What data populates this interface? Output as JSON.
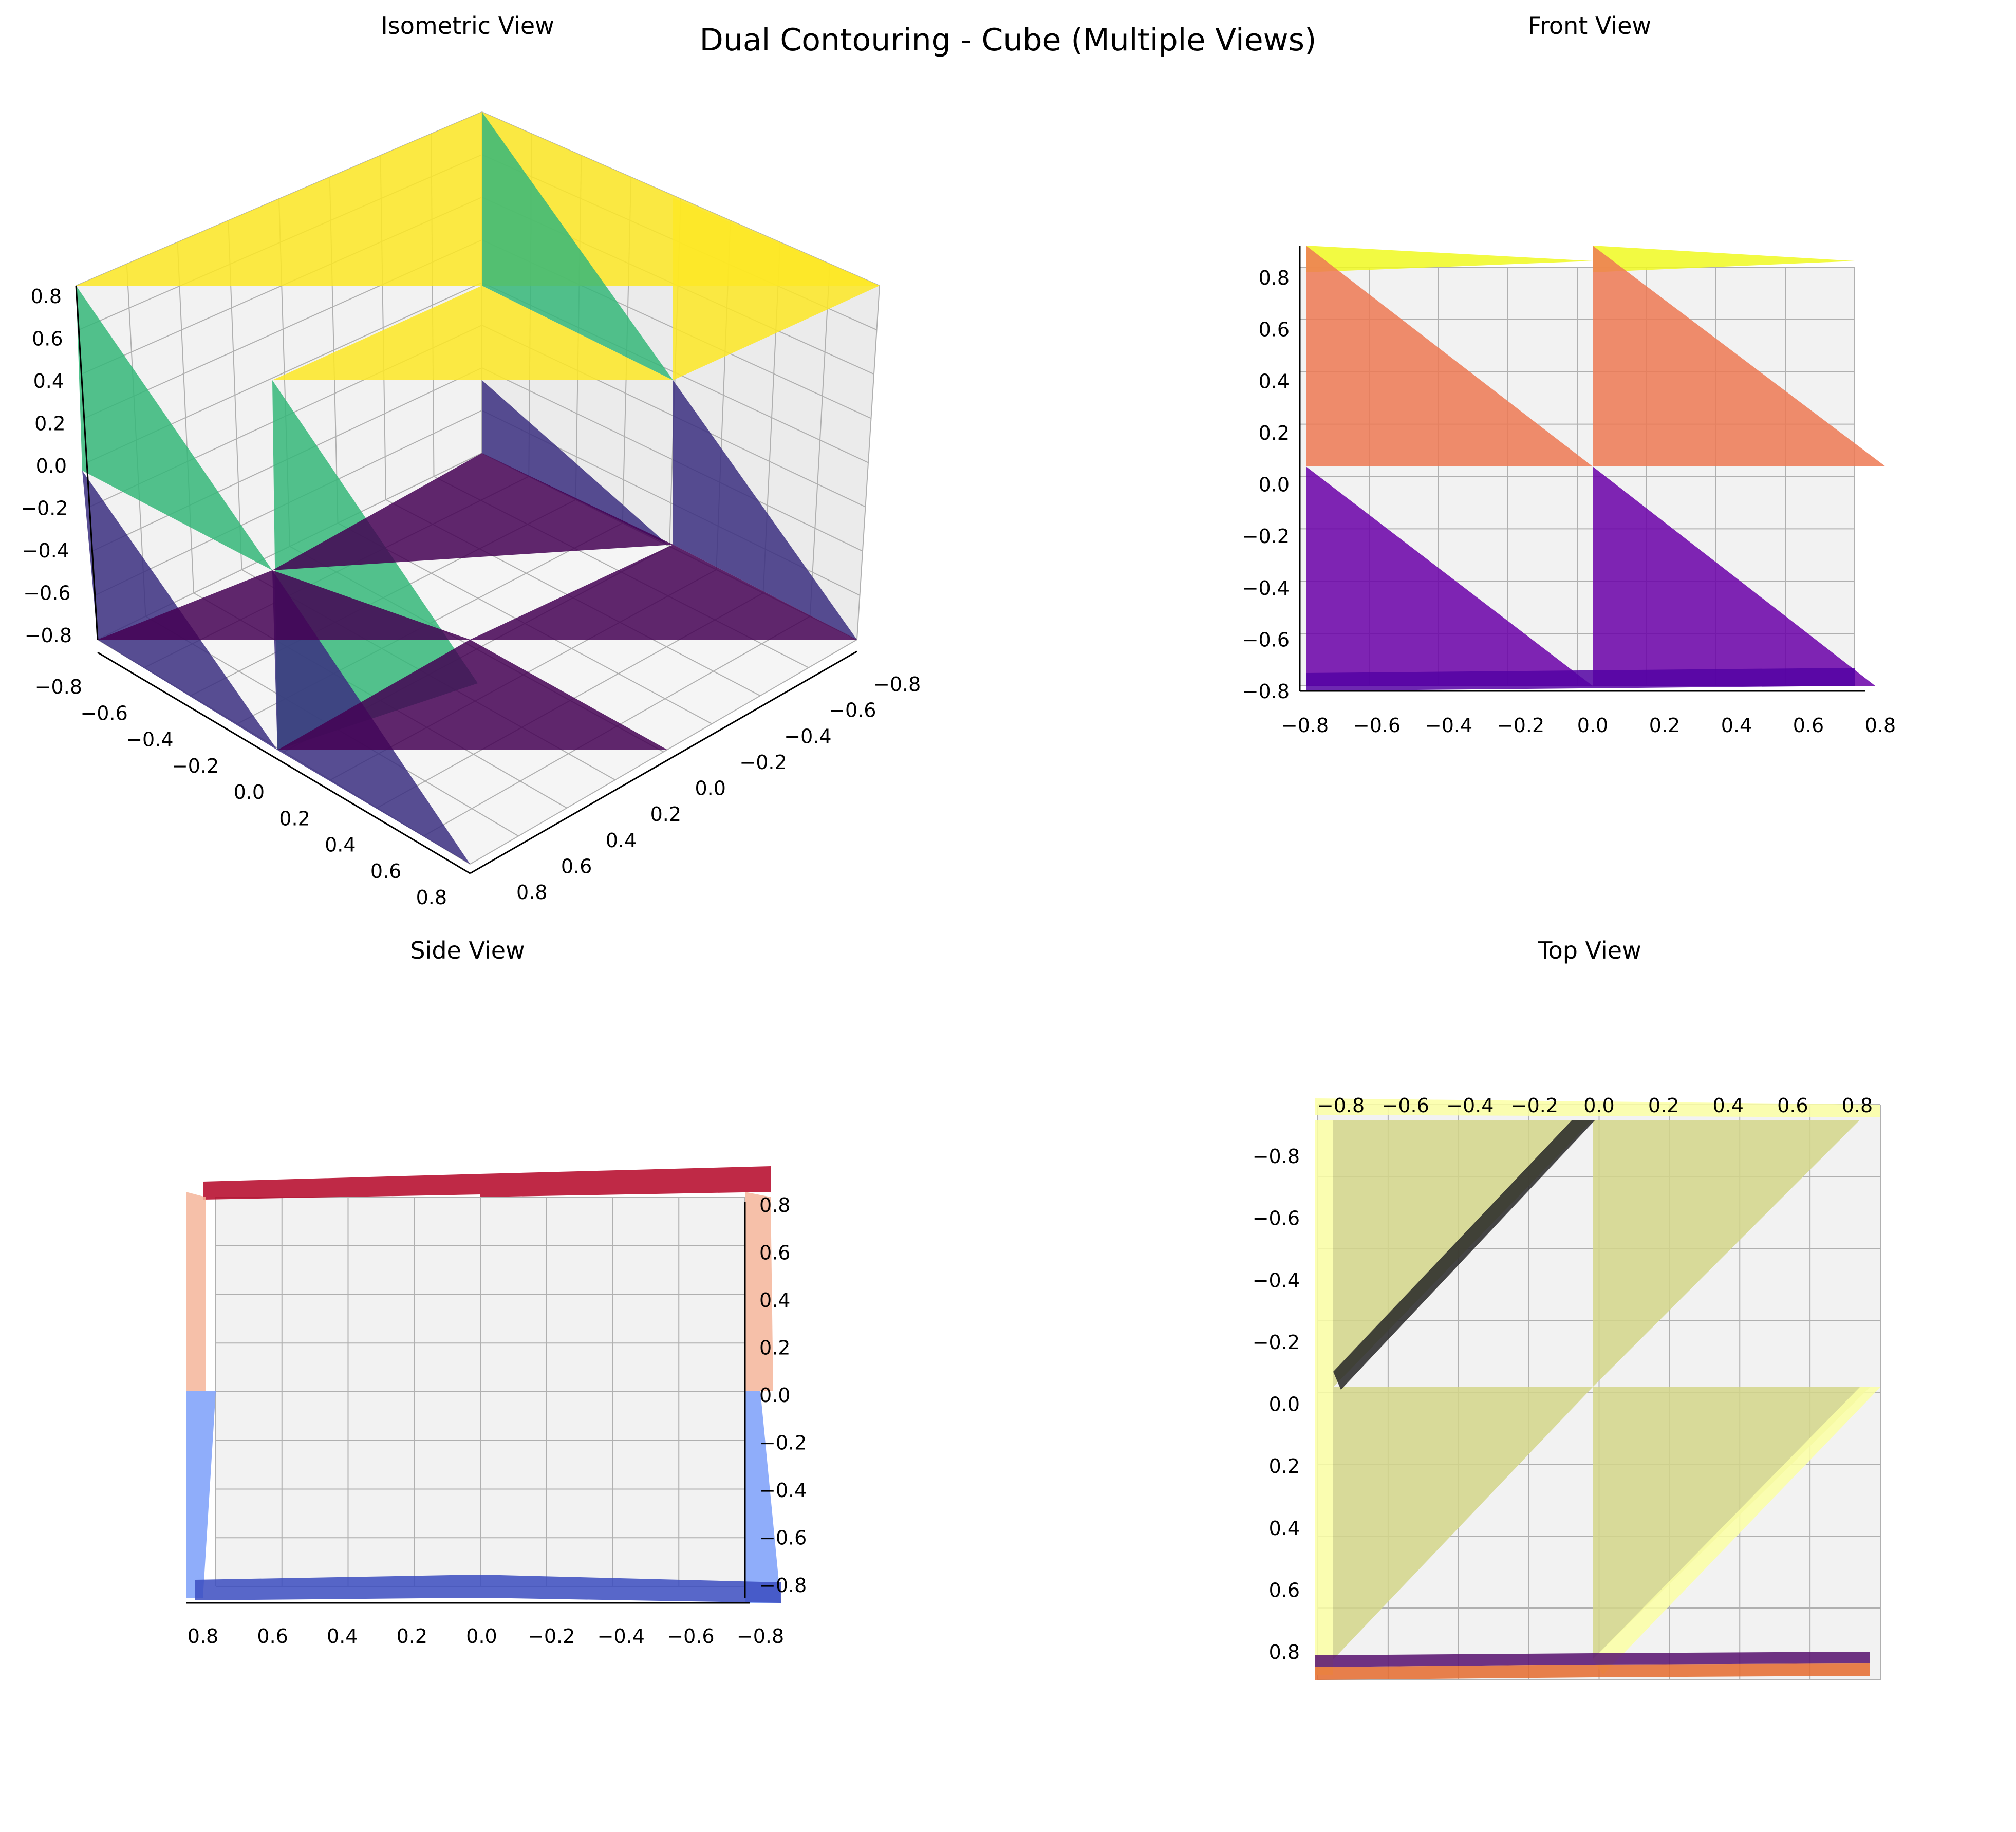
{
  "figure": {
    "title": "Dual Contouring - Cube (Multiple Views)"
  },
  "chart_data": [
    {
      "type": "surface3d",
      "title": "Isometric View",
      "colormap": "viridis",
      "view": "isometric",
      "xlim": [
        -0.85,
        0.85
      ],
      "ylim": [
        -0.85,
        0.85
      ],
      "zlim": [
        -0.85,
        0.85
      ],
      "x_ticks": [
        "−0.8",
        "−0.6",
        "−0.4",
        "−0.2",
        "0.0",
        "0.2",
        "0.4",
        "0.6",
        "0.8"
      ],
      "y_ticks": [
        "−0.8",
        "−0.6",
        "−0.4",
        "−0.2",
        "0.0",
        "0.2",
        "0.4",
        "0.6",
        "0.8"
      ],
      "z_ticks": [
        "−0.8",
        "−0.6",
        "−0.4",
        "−0.2",
        "0.0",
        "0.2",
        "0.4",
        "0.6",
        "0.8"
      ],
      "grid": true,
      "face_colors": {
        "top": "#fde725",
        "side": "#35b779",
        "lower_side": "#3b2f80",
        "bottom": "#440154"
      }
    },
    {
      "type": "surface3d",
      "title": "Front View",
      "colormap": "plasma",
      "view": "front",
      "x_ticks": [
        "−0.8",
        "−0.6",
        "−0.4",
        "−0.2",
        "0.0",
        "0.2",
        "0.4",
        "0.6",
        "0.8"
      ],
      "z_ticks": [
        "−0.8",
        "−0.6",
        "−0.4",
        "−0.2",
        "0.0",
        "0.2",
        "0.4",
        "0.6",
        "0.8"
      ],
      "grid": true,
      "face_colors": {
        "top": "#f0f921",
        "upper": "#ed7953",
        "lower": "#6a00a8",
        "bottom": "#5302a3"
      }
    },
    {
      "type": "surface3d",
      "title": "Side View",
      "colormap": "coolwarm",
      "view": "side",
      "y_ticks": [
        "0.8",
        "0.6",
        "0.4",
        "0.2",
        "0.0",
        "−0.2",
        "−0.4",
        "−0.6",
        "−0.8"
      ],
      "z_ticks": [
        "−0.8",
        "−0.6",
        "−0.4",
        "−0.2",
        "0.0",
        "0.2",
        "0.4",
        "0.6",
        "0.8"
      ],
      "grid": true,
      "face_colors": {
        "top": "#b40426",
        "upper": "#f4b59a",
        "lower": "#7b9ff9",
        "bottom": "#3b4cc0"
      }
    },
    {
      "type": "surface3d",
      "title": "Top View",
      "colormap": "inferno",
      "view": "top",
      "x_ticks": [
        "−0.8",
        "−0.6",
        "−0.4",
        "−0.2",
        "0.0",
        "0.2",
        "0.4",
        "0.6",
        "0.8"
      ],
      "y_ticks": [
        "−0.8",
        "−0.6",
        "−0.4",
        "−0.2",
        "0.0",
        "0.2",
        "0.4",
        "0.6",
        "0.8"
      ],
      "grid": true,
      "face_colors": {
        "top": "#fcffa4",
        "faces": "#d4d68a",
        "edge": "#262626",
        "bottom_a": "#57106e",
        "bottom_b": "#e56b2e"
      }
    }
  ]
}
